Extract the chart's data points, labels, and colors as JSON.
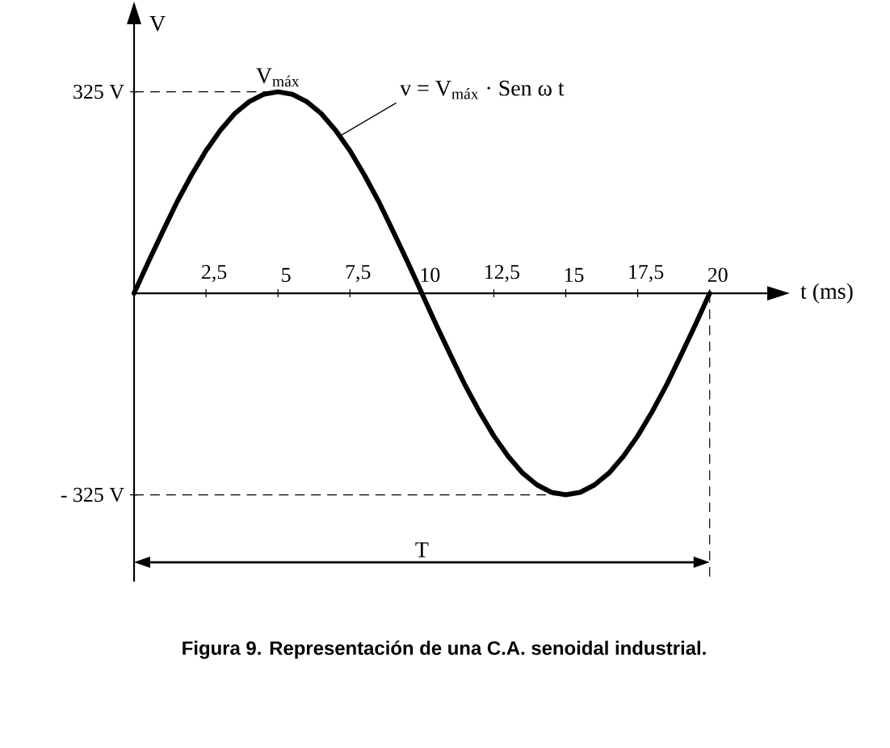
{
  "chart_data": {
    "type": "line",
    "ylabel": "V",
    "xlabel": "t (ms)",
    "x": [
      0,
      0.5,
      1,
      1.5,
      2,
      2.5,
      3,
      3.5,
      4,
      4.5,
      5,
      5.5,
      6,
      6.5,
      7,
      7.5,
      8,
      8.5,
      9,
      9.5,
      10,
      10.5,
      11,
      11.5,
      12,
      12.5,
      13,
      13.5,
      14,
      14.5,
      15,
      15.5,
      16,
      16.5,
      17,
      17.5,
      18,
      18.5,
      19,
      19.5,
      20
    ],
    "series": [
      {
        "color": "#000000",
        "values": [
          0,
          51,
          100,
          148,
          191,
          230,
          263,
          290,
          309,
          321,
          325,
          321,
          309,
          290,
          263,
          230,
          191,
          148,
          100,
          51,
          0,
          -51,
          -100,
          -148,
          -191,
          -230,
          -263,
          -290,
          -309,
          -321,
          -325,
          -321,
          -309,
          -290,
          -263,
          -230,
          -191,
          -148,
          -100,
          -51,
          0
        ]
      }
    ],
    "xlim": [
      0,
      22
    ],
    "ylim": [
      -465,
      434
    ],
    "xticks": [
      {
        "value": 2.5,
        "label": "2,5"
      },
      5,
      {
        "value": 7.5,
        "label": "7,5"
      },
      10,
      {
        "value": 12.5,
        "label": "12,5"
      },
      15,
      {
        "value": 17.5,
        "label": "17,5"
      },
      20
    ],
    "yticks": [
      {
        "value": 325,
        "label": "325 V"
      },
      {
        "value": -325,
        "label": "- 325 V"
      }
    ],
    "ref_lines": [
      {
        "axis": "y",
        "value": 325,
        "line_style": "dashed"
      },
      {
        "axis": "y",
        "value": -325,
        "line_style": "dashed"
      },
      {
        "axis": "x",
        "value": 20,
        "line_style": "dashed"
      }
    ],
    "annotations": [
      "Figura 9. Representación de una C.A. senoidal industrial.",
      {
        "text": "V$_{máx}$",
        "x": 5,
        "y": 325
      },
      {
        "text": "v = V$_{máx}$ · Sen ω t",
        "x": 7.2,
        "y": 255
      },
      "T"
    ],
    "grid": false,
    "marker": "none",
    "line_style": "solid"
  }
}
